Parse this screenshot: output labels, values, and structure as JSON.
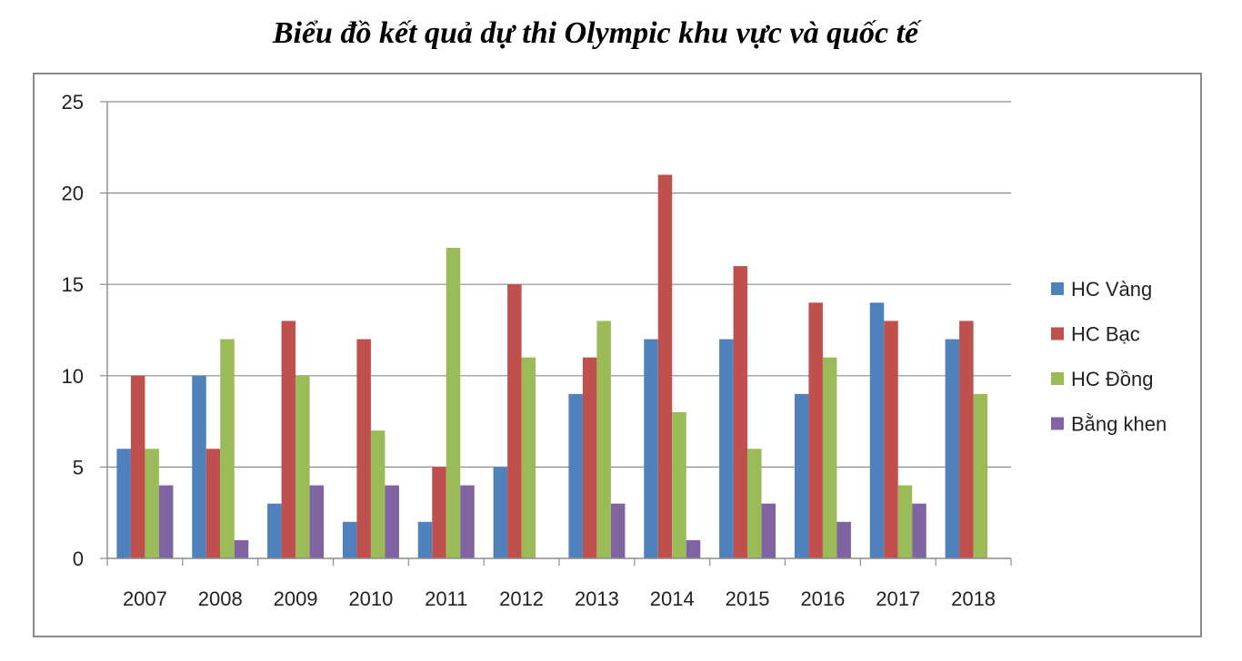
{
  "chart_data": {
    "type": "bar",
    "title": "Biểu đồ kết quả dự thi Olympic khu vực và quốc tế",
    "categories": [
      "2007",
      "2008",
      "2009",
      "2010",
      "2011",
      "2012",
      "2013",
      "2014",
      "2015",
      "2016",
      "2017",
      "2018"
    ],
    "series": [
      {
        "name": "HC Vàng",
        "color": "#4f81bd",
        "values": [
          6,
          10,
          3,
          2,
          2,
          5,
          9,
          12,
          12,
          9,
          14,
          12
        ]
      },
      {
        "name": "HC Bạc",
        "color": "#c0504d",
        "values": [
          10,
          6,
          13,
          12,
          5,
          15,
          11,
          21,
          16,
          14,
          13,
          13
        ]
      },
      {
        "name": "HC Đồng",
        "color": "#9bbb59",
        "values": [
          6,
          12,
          10,
          7,
          17,
          11,
          13,
          8,
          6,
          11,
          4,
          9
        ]
      },
      {
        "name": "Bằng khen",
        "color": "#8064a2",
        "values": [
          4,
          1,
          4,
          4,
          4,
          0,
          3,
          1,
          3,
          2,
          3,
          0
        ]
      }
    ],
    "ylim": [
      0,
      25
    ],
    "yticks": [
      0,
      5,
      10,
      15,
      20,
      25
    ],
    "grid": true,
    "legend": "right"
  }
}
